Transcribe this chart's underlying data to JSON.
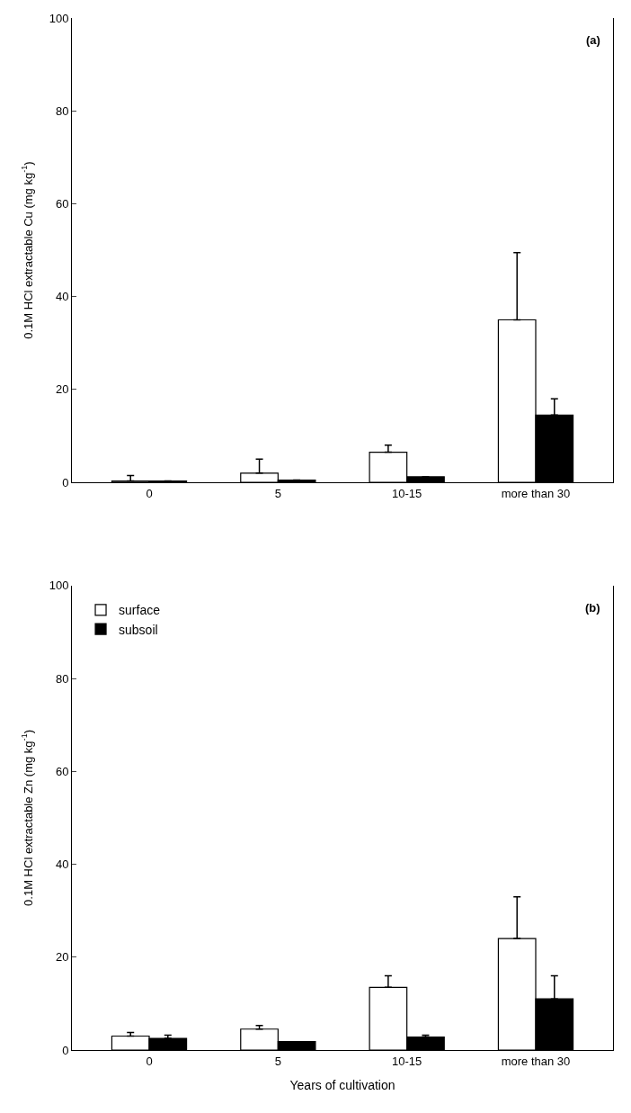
{
  "chart_data": [
    {
      "type": "bar",
      "ylabel": "0.1M HCl extractable Cu (mg kg$^{-1}$)",
      "annotations": [
        "(a)"
      ],
      "categories": [
        "0",
        "5",
        "10-15",
        "more than 30"
      ],
      "ylim": [
        0,
        100
      ],
      "yticks": [
        0,
        20,
        40,
        60,
        80,
        100
      ],
      "legend": false,
      "series": [
        {
          "color": "#ffffff",
          "values": [
            0.3,
            2,
            6.5,
            35
          ],
          "errors": [
            [
              0.3,
              1.5
            ],
            [
              2,
              5
            ],
            [
              6.5,
              8
            ],
            [
              35,
              49.5
            ]
          ]
        },
        {
          "color": "#000000",
          "values": [
            0.3,
            0.5,
            1.2,
            14.5
          ],
          "errors": [
            null,
            null,
            null,
            [
              14.5,
              18
            ]
          ]
        }
      ]
    },
    {
      "type": "bar",
      "ylabel": "0.1M HCl extractable Zn (mg kg$^{-1}$)",
      "xlabel": "Years of cultivation",
      "annotations": [
        "(b)"
      ],
      "categories": [
        "0",
        "5",
        "10-15",
        "more than 30"
      ],
      "ylim": [
        0,
        100
      ],
      "yticks": [
        0,
        20,
        40,
        60,
        80,
        100
      ],
      "legend": "top left",
      "series": [
        {
          "name": "surface",
          "color": "#ffffff",
          "values": [
            3,
            4.5,
            13.5,
            24
          ],
          "errors": [
            [
              3,
              3.8
            ],
            [
              4.5,
              5.3
            ],
            [
              13.5,
              16
            ],
            [
              24,
              33
            ]
          ]
        },
        {
          "name": "subsoil",
          "color": "#000000",
          "values": [
            2.5,
            1.8,
            2.8,
            11
          ],
          "errors": [
            [
              2.5,
              3.2
            ],
            null,
            [
              2.8,
              3.2
            ],
            [
              11,
              16
            ]
          ]
        }
      ]
    }
  ]
}
